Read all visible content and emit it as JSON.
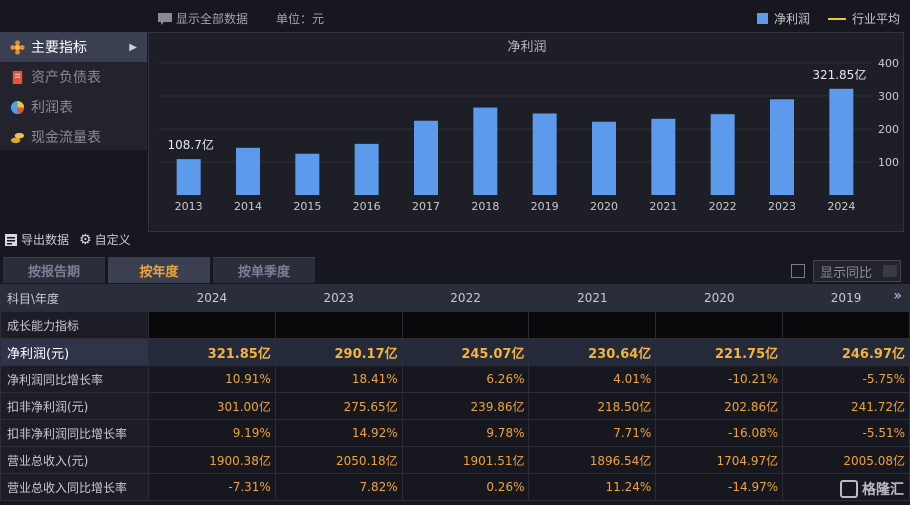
{
  "topbar": {
    "show_all_label": "显示全部数据",
    "unit_label": "单位：元"
  },
  "legend": {
    "net_profit_label": "净利润",
    "industry_avg_label": "行业平均",
    "bar_color": "#5c9aec",
    "avg_color": "#f0c43b"
  },
  "sidebar": {
    "items": [
      {
        "label": "主要指标",
        "icon": "flower-icon"
      },
      {
        "label": "资产负债表",
        "icon": "document-icon"
      },
      {
        "label": "利润表",
        "icon": "pie-icon"
      },
      {
        "label": "现金流量表",
        "icon": "coins-icon"
      }
    ]
  },
  "tools": {
    "export_label": "导出数据",
    "custom_label": "自定义"
  },
  "tabs": [
    {
      "label": "按报告期"
    },
    {
      "label": "按年度"
    },
    {
      "label": "按单季度"
    }
  ],
  "yoy": {
    "select_label": "显示同比"
  },
  "chart_data": {
    "type": "bar",
    "title": "净利润",
    "categories": [
      "2013",
      "2014",
      "2015",
      "2016",
      "2017",
      "2018",
      "2019",
      "2020",
      "2021",
      "2022",
      "2023",
      "2024"
    ],
    "series": [
      {
        "name": "净利润",
        "values": [
          108.7,
          143,
          125,
          155,
          225,
          265,
          247,
          222,
          231,
          245,
          290,
          321.85
        ]
      }
    ],
    "data_labels": {
      "first": "108.7亿",
      "last": "321.85亿"
    },
    "ylim": [
      0,
      400
    ],
    "yticks": [
      100,
      200,
      300,
      400
    ],
    "bar_color": "#5c9aec",
    "grid": true
  },
  "table": {
    "header_label": "科目\\年度",
    "years": [
      "2024",
      "2023",
      "2022",
      "2021",
      "2020",
      "2019"
    ],
    "section_label": "成长能力指标",
    "rows": [
      {
        "name": "净利润(元)",
        "values": [
          "321.85亿",
          "290.17亿",
          "245.07亿",
          "230.64亿",
          "221.75亿",
          "246.97亿"
        ]
      },
      {
        "name": "净利润同比增长率",
        "values": [
          "10.91%",
          "18.41%",
          "6.26%",
          "4.01%",
          "-10.21%",
          "-5.75%"
        ]
      },
      {
        "name": "扣非净利润(元)",
        "values": [
          "301.00亿",
          "275.65亿",
          "239.86亿",
          "218.50亿",
          "202.86亿",
          "241.72亿"
        ]
      },
      {
        "name": "扣非净利润同比增长率",
        "values": [
          "9.19%",
          "14.92%",
          "9.78%",
          "7.71%",
          "-16.08%",
          "-5.51%"
        ]
      },
      {
        "name": "营业总收入(元)",
        "values": [
          "1900.38亿",
          "2050.18亿",
          "1901.51亿",
          "1896.54亿",
          "1704.97亿",
          "2005.08亿"
        ]
      },
      {
        "name": "营业总收入同比增长率",
        "values": [
          "-7.31%",
          "7.82%",
          "0.26%",
          "11.24%",
          "-14.97%",
          ""
        ]
      }
    ]
  },
  "watermark": {
    "text": "格隆汇"
  }
}
